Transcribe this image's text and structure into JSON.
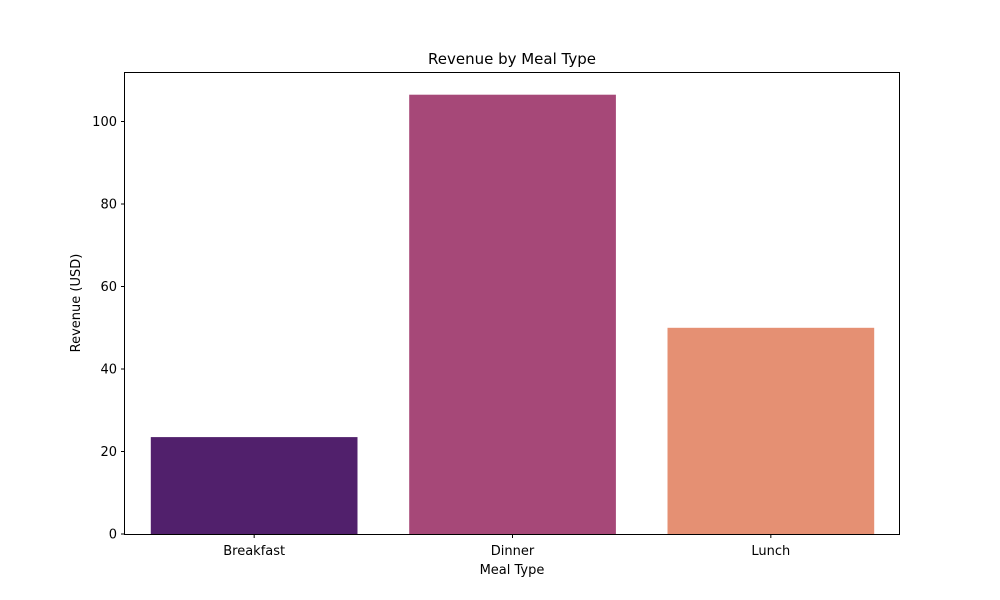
{
  "chart_data": {
    "type": "bar",
    "title": "Revenue by Meal Type",
    "xlabel": "Meal Type",
    "ylabel": "Revenue (USD)",
    "categories": [
      "Breakfast",
      "Dinner",
      "Lunch"
    ],
    "values": [
      23.5,
      106.5,
      50.0
    ],
    "colors": [
      "#51206c",
      "#a64878",
      "#e59073"
    ],
    "ylim": [
      0,
      112
    ],
    "yticks": [
      0,
      20,
      40,
      60,
      80,
      100
    ],
    "grid": false,
    "legend": false
  }
}
